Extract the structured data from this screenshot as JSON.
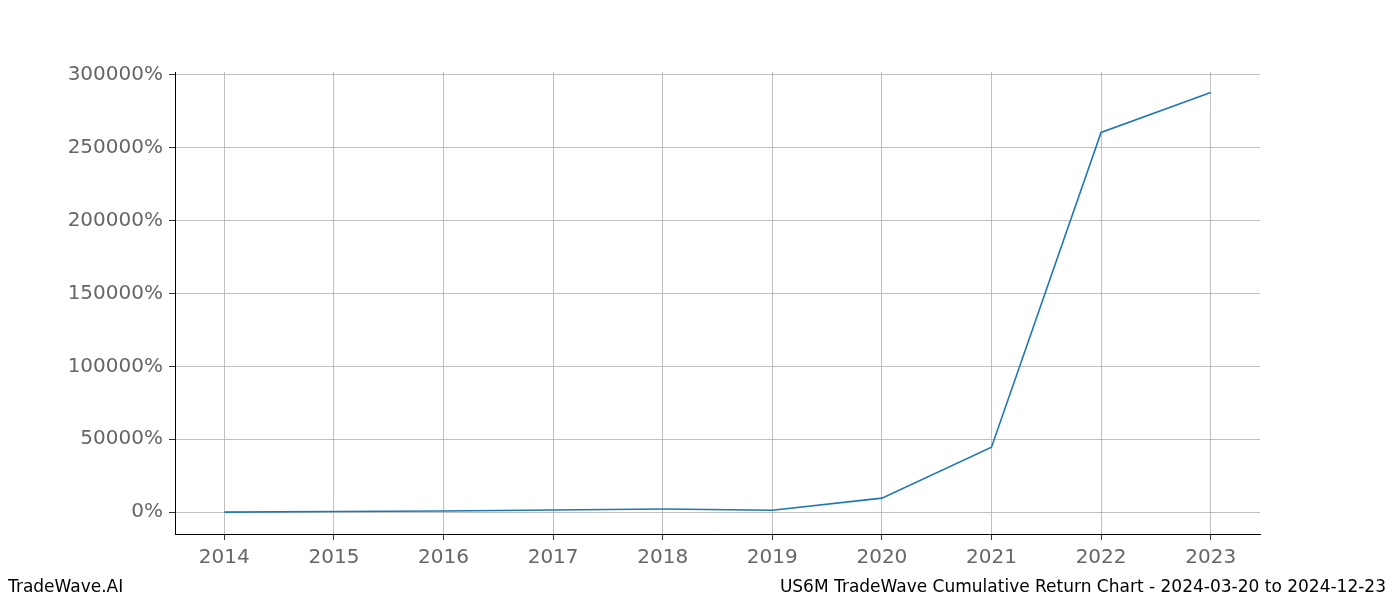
{
  "chart_data": {
    "type": "line",
    "title": "US6M TradeWave Cumulative Return Chart - 2024-03-20 to 2024-12-23",
    "annotations": [
      "TradeWave.AI"
    ],
    "x": [
      2014,
      2015,
      2016,
      2017,
      2018,
      2019,
      2020,
      2021,
      2022,
      2023
    ],
    "values": [
      0,
      400,
      800,
      1500,
      2200,
      1300,
      9600,
      44500,
      260500,
      288000
    ],
    "color": "#1f77b4",
    "marker": "none",
    "xlim": [
      2013.55,
      2023.45
    ],
    "xticks": [
      2014,
      2015,
      2016,
      2017,
      2018,
      2019,
      2020,
      2021,
      2022,
      2023
    ],
    "ylim": [
      -15000,
      302000
    ],
    "yticks": [
      {
        "value": 0,
        "label": "0%"
      },
      {
        "value": 50000,
        "label": "50000%"
      },
      {
        "value": 100000,
        "label": "100000%"
      },
      {
        "value": 150000,
        "label": "150000%"
      },
      {
        "value": 200000,
        "label": "200000%"
      },
      {
        "value": 250000,
        "label": "250000%"
      },
      {
        "value": 300000,
        "label": "300000%"
      }
    ],
    "grid": true
  }
}
